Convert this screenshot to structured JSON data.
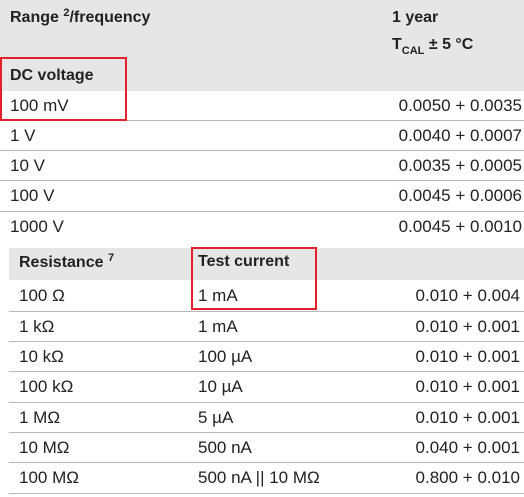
{
  "voltage_table": {
    "col_range_label": "Range",
    "col_range_sup": "2",
    "col_range_suffix": "/frequency",
    "col_accuracy_line1": "1 year",
    "col_accuracy_t": "T",
    "col_accuracy_sub": "CAL",
    "col_accuracy_rest": " ± 5 °C",
    "section_label": "DC voltage",
    "rows": [
      {
        "range": "100 mV",
        "accuracy": "0.0050 + 0.0035"
      },
      {
        "range": "1 V",
        "accuracy": "0.0040 + 0.0007"
      },
      {
        "range": "10 V",
        "accuracy": "0.0035 + 0.0005"
      },
      {
        "range": "100 V",
        "accuracy": "0.0045 + 0.0006"
      },
      {
        "range": "1000 V",
        "accuracy": "0.0045 + 0.0010"
      }
    ]
  },
  "resistance_table": {
    "col_resistance_label": "Resistance",
    "col_resistance_sup": "7",
    "col_current_label": "Test current",
    "rows": [
      {
        "range": "100 Ω",
        "current": "1 mA",
        "accuracy": "0.010 + 0.004"
      },
      {
        "range": "1 kΩ",
        "current": "1 mA",
        "accuracy": "0.010 + 0.001"
      },
      {
        "range": "10 kΩ",
        "current": "100 µA",
        "accuracy": "0.010 + 0.001"
      },
      {
        "range": "100 kΩ",
        "current": "10 µA",
        "accuracy": "0.010 + 0.001"
      },
      {
        "range": "1 MΩ",
        "current": "5 µA",
        "accuracy": "0.010 + 0.001"
      },
      {
        "range": "10 MΩ",
        "current": "500 nA",
        "accuracy": "0.040 + 0.001"
      },
      {
        "range": "100 MΩ",
        "current": "500 nA || 10 MΩ",
        "accuracy": "0.800 + 0.010"
      }
    ]
  },
  "highlight_color": "#e3202c"
}
